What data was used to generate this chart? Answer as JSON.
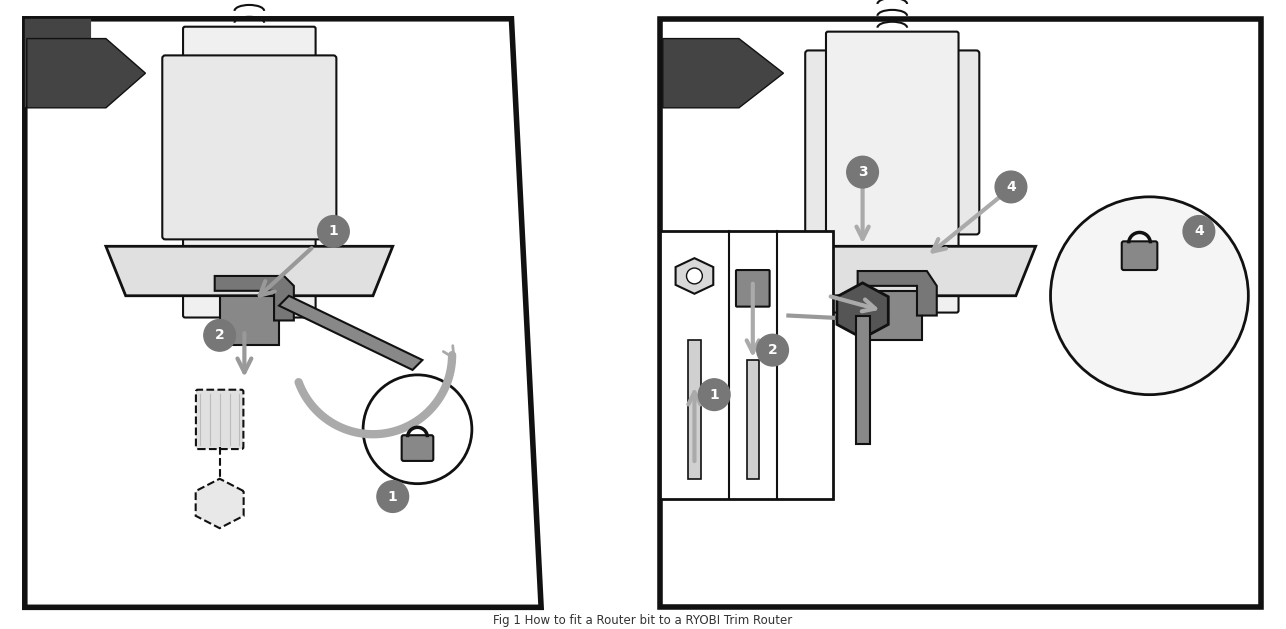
{
  "title": "Fig 1 How to fit a Router bit to a RYOBI Trim Router",
  "bg_color": "#ffffff",
  "border_color": "#111111",
  "panel_bg": "#ffffff",
  "dark_arrow_color": "#555555",
  "step_circle_color": "#777777",
  "step_text_color": "#ffffff",
  "line_color": "#111111",
  "gray_fill": "#aaaaaa",
  "light_gray": "#cccccc",
  "dark_gray": "#444444",
  "figsize": [
    12.86,
    6.29
  ],
  "dpi": 100
}
